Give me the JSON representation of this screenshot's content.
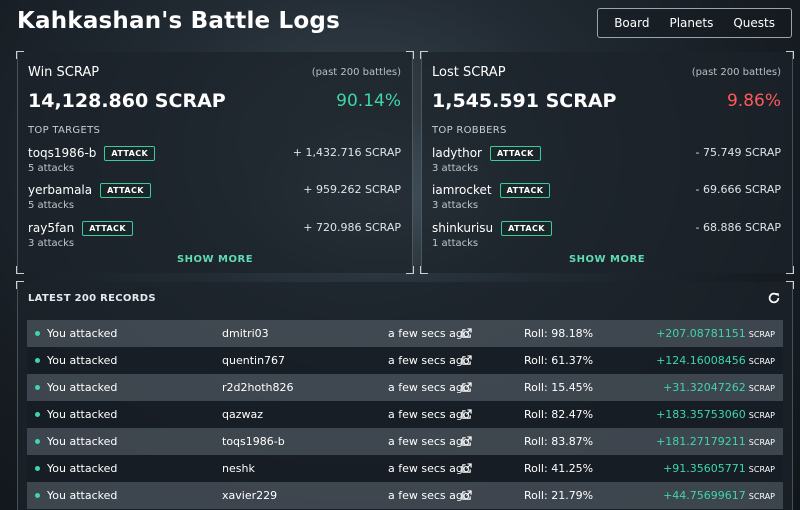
{
  "page": {
    "title": "Kahkashan's Battle Logs"
  },
  "nav": {
    "items": [
      "Board",
      "Planets",
      "Quests"
    ]
  },
  "colors": {
    "accent": "#3fd6a8",
    "positive": "#3fd6a8",
    "negative": "#ff5a5a"
  },
  "win": {
    "title": "Win SCRAP",
    "subtitle": "(past 200 battles)",
    "total": "14,128.860 SCRAP",
    "percent": "90.14%",
    "section": "TOP TARGETS",
    "entries": [
      {
        "name": "toqs1986-b",
        "button": "ATTACK",
        "attacks": "5 attacks",
        "amount": "+ 1,432.716 SCRAP"
      },
      {
        "name": "yerbamala",
        "button": "ATTACK",
        "attacks": "5 attacks",
        "amount": "+ 959.262 SCRAP"
      },
      {
        "name": "ray5fan",
        "button": "ATTACK",
        "attacks": "3 attacks",
        "amount": "+ 720.986 SCRAP"
      }
    ],
    "show_more": "SHOW MORE"
  },
  "lost": {
    "title": "Lost SCRAP",
    "subtitle": "(past 200 battles)",
    "total": "1,545.591 SCRAP",
    "percent": "9.86%",
    "section": "TOP ROBBERS",
    "entries": [
      {
        "name": "ladythor",
        "button": "ATTACK",
        "attacks": "3 attacks",
        "amount": "- 75.749 SCRAP"
      },
      {
        "name": "iamrocket",
        "button": "ATTACK",
        "attacks": "3 attacks",
        "amount": "- 69.666 SCRAP"
      },
      {
        "name": "shinkurisu",
        "button": "ATTACK",
        "attacks": "1 attacks",
        "amount": "- 68.886 SCRAP"
      }
    ],
    "show_more": "SHOW MORE"
  },
  "records": {
    "title": "LATEST 200 RECORDS",
    "rows": [
      {
        "action": "You attacked",
        "user": "dmitri03",
        "time": "a few secs ago",
        "roll": "Roll: 98.18%",
        "amount": "+207.08781151",
        "unit": "SCRAP"
      },
      {
        "action": "You attacked",
        "user": "quentin767",
        "time": "a few secs ago",
        "roll": "Roll: 61.37%",
        "amount": "+124.16008456",
        "unit": "SCRAP"
      },
      {
        "action": "You attacked",
        "user": "r2d2hoth826",
        "time": "a few secs ago",
        "roll": "Roll: 15.45%",
        "amount": "+31.32047262",
        "unit": "SCRAP"
      },
      {
        "action": "You attacked",
        "user": "qazwaz",
        "time": "a few secs ago",
        "roll": "Roll: 82.47%",
        "amount": "+183.35753060",
        "unit": "SCRAP"
      },
      {
        "action": "You attacked",
        "user": "toqs1986-b",
        "time": "a few secs ago",
        "roll": "Roll: 83.87%",
        "amount": "+181.27179211",
        "unit": "SCRAP"
      },
      {
        "action": "You attacked",
        "user": "neshk",
        "time": "a few secs ago",
        "roll": "Roll: 41.25%",
        "amount": "+91.35605771",
        "unit": "SCRAP"
      },
      {
        "action": "You attacked",
        "user": "xavier229",
        "time": "a few secs ago",
        "roll": "Roll: 21.79%",
        "amount": "+44.75699617",
        "unit": "SCRAP"
      }
    ]
  }
}
